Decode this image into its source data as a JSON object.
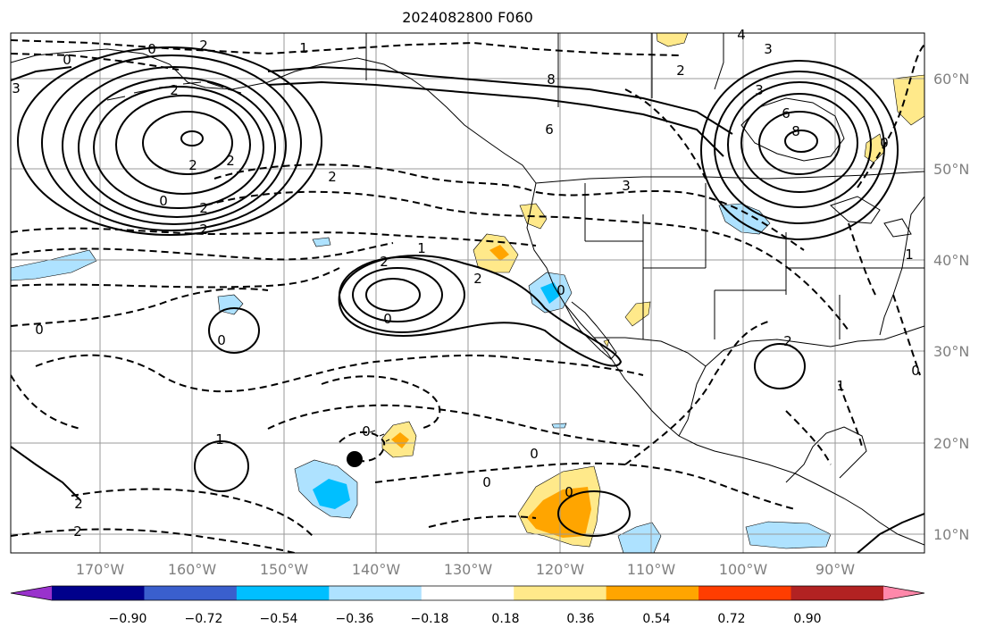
{
  "title": "2024082800 F060",
  "map": {
    "latitude_labels": [
      "60°N",
      "50°N",
      "40°N",
      "30°N",
      "20°N",
      "10°N"
    ],
    "longitude_labels": [
      "170°W",
      "160°W",
      "150°W",
      "140°W",
      "130°W",
      "120°W",
      "110°W",
      "100°W",
      "90°W"
    ],
    "contour_labels": [
      "0",
      "2",
      "1",
      "0",
      "2",
      "4",
      "3",
      "2",
      "3",
      "6",
      "8",
      "2",
      "2",
      "8",
      "6",
      "3",
      "0",
      "2",
      "2",
      "3",
      "2",
      "1",
      "2",
      "2",
      "0",
      "0",
      "0",
      "0",
      "2",
      "1",
      "0",
      "1",
      "0",
      "0",
      "1",
      "0",
      "0",
      "0",
      "2",
      "2"
    ],
    "marker": "storm-center-dot"
  },
  "colorbar": {
    "tick_labels": [
      "−0.90",
      "−0.72",
      "−0.54",
      "−0.36",
      "−0.18",
      "0.18",
      "0.36",
      "0.54",
      "0.72",
      "0.90"
    ],
    "colors": [
      "#9932cc",
      "#00008b",
      "#3a5fcd",
      "#00bfff",
      "#aee2ff",
      "#ffffff",
      "#ffe98a",
      "#ffa500",
      "#ff3d00",
      "#b22222",
      "#ff88aa"
    ]
  }
}
